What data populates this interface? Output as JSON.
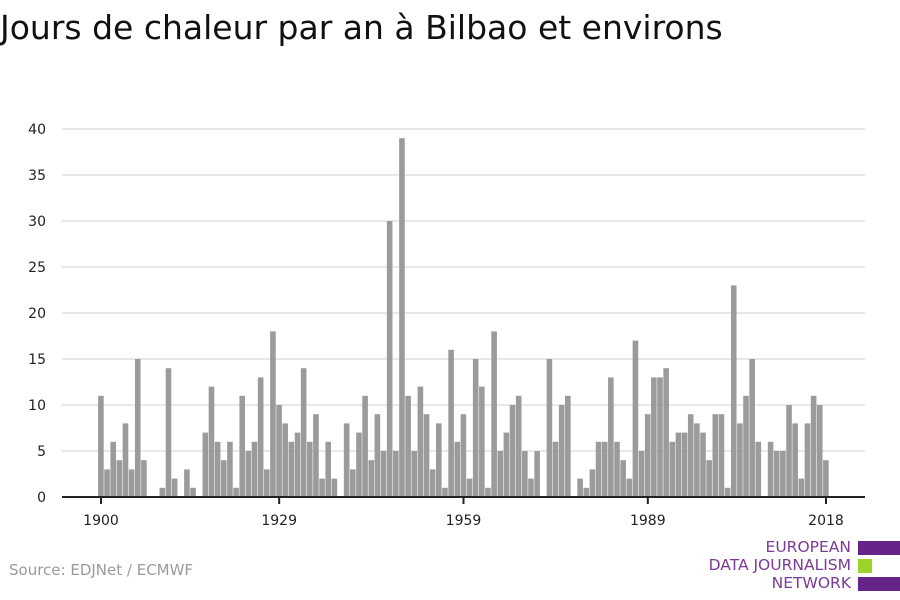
{
  "title": "Jours de chaleur par an à Bilbao et environs",
  "source": "Source: EDJNet / ECMWF",
  "logo": {
    "line1": "EUROPEAN",
    "line2": "DATA JOURNALISM",
    "line3": "NETWORK",
    "purple": "#66238a",
    "green": "#9ad42a"
  },
  "colors": {
    "bar": "#9b9b9b",
    "grid": "#e0e0e0",
    "axis": "#222222"
  },
  "chart_data": {
    "type": "bar",
    "title": "Jours de chaleur par an à Bilbao et environs",
    "xlabel": "",
    "ylabel": "",
    "ylim": [
      0,
      40
    ],
    "yticks": [
      "0",
      "5",
      "10",
      "15",
      "20",
      "25",
      "30",
      "35",
      "40"
    ],
    "xticks": [
      "1900",
      "1929",
      "1959",
      "1989",
      "2018"
    ],
    "grid": true,
    "start_year": 1900,
    "values": [
      11,
      3,
      6,
      4,
      8,
      3,
      15,
      4,
      0,
      0,
      1,
      14,
      2,
      0,
      3,
      1,
      0,
      7,
      12,
      6,
      4,
      6,
      1,
      11,
      5,
      6,
      13,
      3,
      18,
      10,
      8,
      6,
      7,
      14,
      6,
      9,
      2,
      6,
      2,
      0,
      8,
      3,
      7,
      11,
      4,
      9,
      5,
      30,
      5,
      39,
      11,
      5,
      12,
      9,
      3,
      8,
      1,
      16,
      6,
      9,
      2,
      15,
      12,
      1,
      18,
      5,
      7,
      10,
      11,
      5,
      2,
      5,
      0,
      15,
      6,
      10,
      11,
      0,
      2,
      1,
      3,
      6,
      6,
      13,
      6,
      4,
      2,
      17,
      5,
      9,
      13,
      13,
      14,
      6,
      7,
      7,
      9,
      8,
      7,
      4,
      9,
      9,
      1,
      23,
      8,
      11,
      15,
      6,
      0,
      6,
      5,
      5,
      10,
      8,
      2,
      8,
      11,
      10,
      4
    ]
  }
}
